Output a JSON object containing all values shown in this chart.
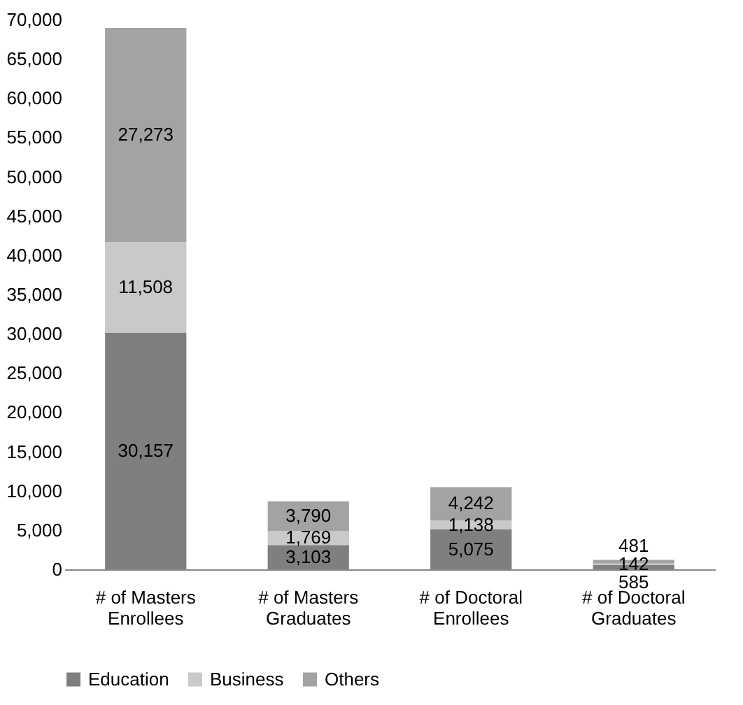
{
  "chart_data": {
    "type": "bar",
    "stacked": true,
    "legend": "bottom",
    "grid": false,
    "categories": [
      "# of Masters Enrollees",
      "# of Masters Graduates",
      "# of Doctoral Enrollees",
      "# of Doctoral Graduates"
    ],
    "series": [
      {
        "name": "Education",
        "color": "#7f7f7f",
        "values": [
          30157,
          3103,
          5075,
          585
        ],
        "value_labels": [
          "30,157",
          "3,103",
          "5,075",
          "585"
        ]
      },
      {
        "name": "Business",
        "color": "#c9c9c9",
        "values": [
          11508,
          1769,
          1138,
          142
        ],
        "value_labels": [
          "11,508",
          "1,769",
          "1,138",
          "142"
        ]
      },
      {
        "name": "Others",
        "color": "#a3a3a3",
        "values": [
          27273,
          3790,
          4242,
          481
        ],
        "value_labels": [
          "27,273",
          "3,790",
          "4,242",
          "481"
        ]
      }
    ],
    "ylim": [
      0,
      70000
    ],
    "yticks": [
      0,
      {
        "value": 5000,
        "label": "5,000"
      },
      {
        "value": 10000,
        "label": "10,000"
      },
      {
        "value": 15000,
        "label": "15,000"
      },
      {
        "value": 20000,
        "label": "20,000"
      },
      {
        "value": 25000,
        "label": "25,000"
      },
      {
        "value": 30000,
        "label": "30,000"
      },
      {
        "value": 35000,
        "label": "35,000"
      },
      {
        "value": 40000,
        "label": "40,000"
      },
      {
        "value": 45000,
        "label": "45,000"
      },
      {
        "value": 50000,
        "label": "50,000"
      },
      {
        "value": 55000,
        "label": "55,000"
      },
      {
        "value": 60000,
        "label": "60,000"
      },
      {
        "value": 65000,
        "label": "65,000"
      },
      {
        "value": 70000,
        "label": "70,000"
      }
    ]
  }
}
